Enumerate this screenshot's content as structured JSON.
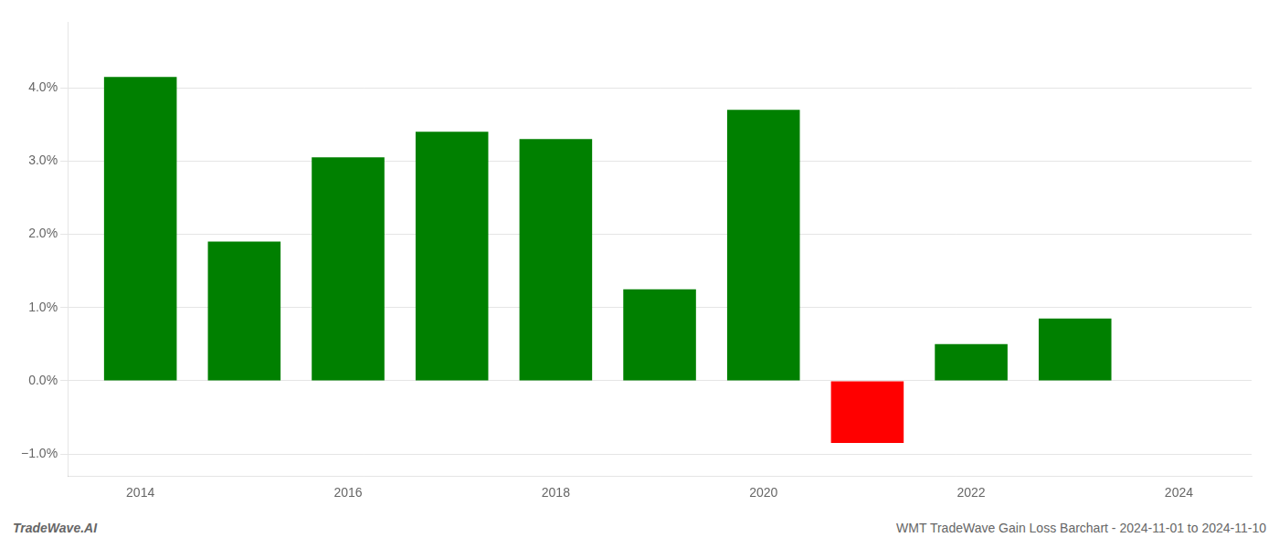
{
  "chart_data": {
    "type": "bar",
    "x": [
      2014,
      2015,
      2016,
      2017,
      2018,
      2019,
      2020,
      2021,
      2022,
      2023
    ],
    "values": [
      0.0415,
      0.019,
      0.0305,
      0.034,
      0.033,
      0.0125,
      0.037,
      -0.0085,
      0.005,
      0.0085
    ],
    "colors": [
      "#008000",
      "#008000",
      "#008000",
      "#008000",
      "#008000",
      "#008000",
      "#008000",
      "#ff0000",
      "#008000",
      "#008000"
    ],
    "xlim": [
      2013.3,
      2024.7
    ],
    "xticks": [
      2014,
      2016,
      2018,
      2020,
      2022,
      2024
    ],
    "ylim": [
      -0.013,
      0.049
    ],
    "yticks": [
      {
        "value": -0.01,
        "label": "−1.0%"
      },
      {
        "value": 0.0,
        "label": "0.0%"
      },
      {
        "value": 0.01,
        "label": "1.0%"
      },
      {
        "value": 0.02,
        "label": "2.0%"
      },
      {
        "value": 0.03,
        "label": "3.0%"
      },
      {
        "value": 0.04,
        "label": "4.0%"
      }
    ],
    "grid": "y",
    "annotations": [
      {
        "text": "TradeWave.AI"
      },
      {
        "text": "WMT TradeWave Gain Loss Barchart - 2024-11-01 to 2024-11-10"
      }
    ]
  }
}
